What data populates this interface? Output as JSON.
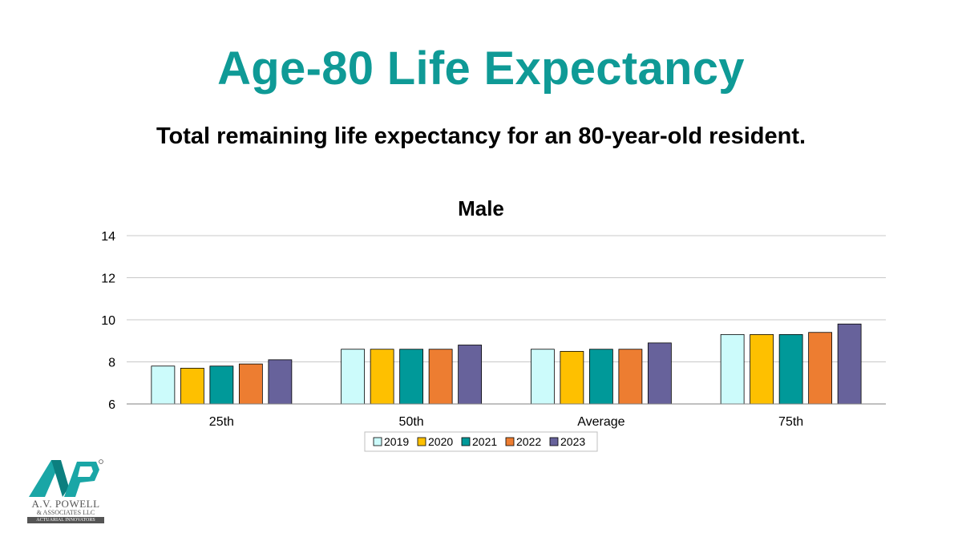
{
  "slide": {
    "title": "Age-80 Life Expectancy",
    "subtitle": "Total remaining life expectancy for an 80-year-old resident."
  },
  "logo": {
    "name": "A.V. POWELL",
    "line2": "& ASSOCIATES LLC",
    "tagline": "ACTUARIAL INNOVATORS"
  },
  "colors": {
    "title": "#0f9a96",
    "series": [
      "#ccfbfb",
      "#fec000",
      "#009999",
      "#ed7d31",
      "#67629b"
    ]
  },
  "chart_data": {
    "type": "bar",
    "title": "Male",
    "xlabel": "",
    "ylabel": "",
    "categories": [
      "25th",
      "50th",
      "Average",
      "75th"
    ],
    "series": [
      {
        "name": "2019",
        "values": [
          7.8,
          8.6,
          8.6,
          9.3
        ]
      },
      {
        "name": "2020",
        "values": [
          7.7,
          8.6,
          8.5,
          9.3
        ]
      },
      {
        "name": "2021",
        "values": [
          7.8,
          8.6,
          8.6,
          9.3
        ]
      },
      {
        "name": "2022",
        "values": [
          7.9,
          8.6,
          8.6,
          9.4
        ]
      },
      {
        "name": "2023",
        "values": [
          8.1,
          8.8,
          8.9,
          9.8
        ]
      }
    ],
    "ylim": [
      6,
      14
    ],
    "yticks": [
      6,
      8,
      10,
      12,
      14
    ],
    "grid": true,
    "legend": "bottom"
  }
}
